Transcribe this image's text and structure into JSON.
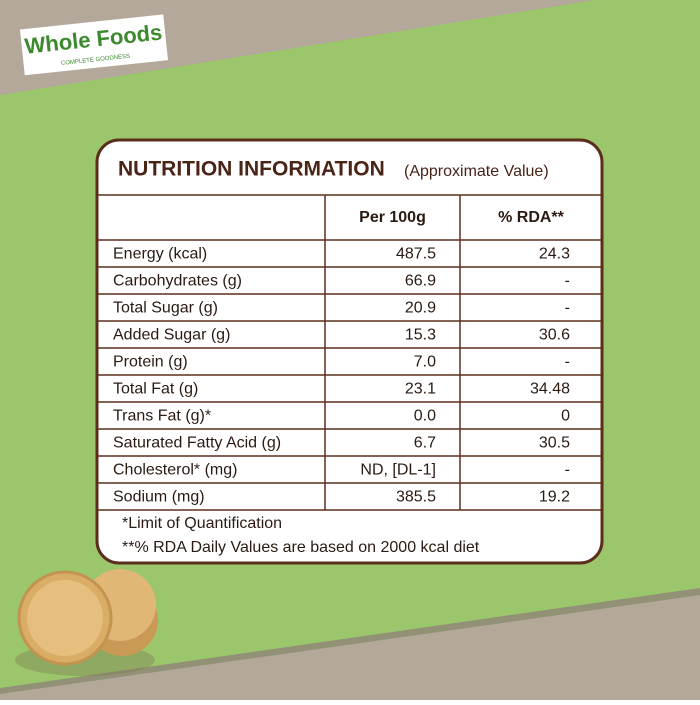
{
  "logo": {
    "name": "Whole Foods",
    "tagline": "COMPLETE GOODNESS"
  },
  "panel": {
    "title": "NUTRITION INFORMATION",
    "subtitle": "(Approximate Value)",
    "table": {
      "header": [
        "Per 100g",
        "% RDA**"
      ],
      "rows": [
        [
          "Energy (kcal)",
          "487.5",
          "24.3"
        ],
        [
          "Carbohydrates (g)",
          "66.9",
          "-"
        ],
        [
          "Total Sugar (g)",
          "20.9",
          "-"
        ],
        [
          "Added Sugar (g)",
          "15.3",
          "30.6"
        ],
        [
          "Protein (g)",
          "7.0",
          "-"
        ],
        [
          "Total Fat (g)",
          "23.1",
          "34.48"
        ],
        [
          "Trans Fat (g)*",
          "0.0",
          "0"
        ],
        [
          "Saturated Fatty Acid (g)",
          "6.7",
          "30.5"
        ],
        [
          "Cholesterol* (mg)",
          "ND, [DL-1]",
          "-"
        ],
        [
          "Sodium (mg)",
          "385.5",
          "19.2"
        ]
      ]
    },
    "footnotes": [
      "*Limit of Quantification",
      "**% RDA Daily Values are based on 2000 kcal diet"
    ]
  }
}
